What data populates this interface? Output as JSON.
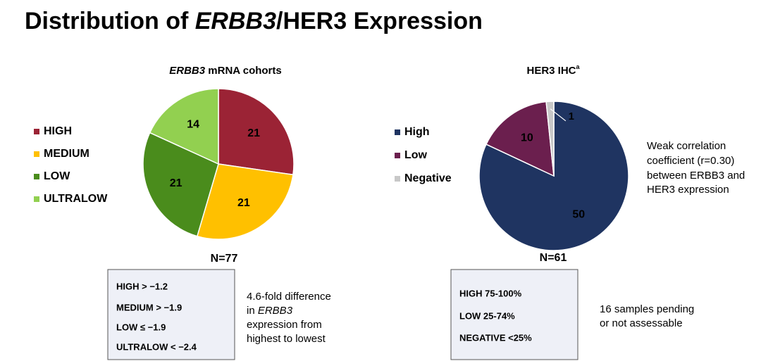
{
  "slide": {
    "title": [
      "Distribution of ",
      "ERBB3",
      "/HER3 Expression"
    ]
  },
  "chart_data": [
    {
      "type": "pie",
      "title": [
        "ERBB3",
        " mRNA cohorts"
      ],
      "categories": [
        "HIGH",
        "MEDIUM",
        "LOW",
        "ULTRALOW"
      ],
      "values": [
        21,
        21,
        21,
        14
      ],
      "colors": [
        "#9b2335",
        "#ffc000",
        "#4a8c1c",
        "#92d050"
      ],
      "n_label": "N=77",
      "cutoffs": [
        "HIGH > −1.2",
        "MEDIUM > −1.9",
        "LOW  ≤ −1.9",
        "ULTRALOW < −2.4"
      ],
      "note": [
        "4.6-fold difference",
        "in ",
        "ERBB3",
        "expression from",
        "highest to lowest"
      ]
    },
    {
      "type": "pie",
      "title": [
        "HER3 IHC",
        "a"
      ],
      "categories": [
        "High",
        "Low",
        "Negative"
      ],
      "values": [
        50,
        10,
        1
      ],
      "colors": [
        "#1f3461",
        "#6b1f4e",
        "#c8c8c8"
      ],
      "n_label": "N=61",
      "cutoffs": [
        "HIGH 75-100%",
        "LOW 25-74%",
        "NEGATIVE <25%"
      ],
      "note": [
        "16 samples pending",
        "or not assessable"
      ],
      "annotation": [
        "Weak correlation",
        "coefficient (r=0.30)",
        "between ERBB3 and",
        "HER3 expression"
      ]
    }
  ]
}
